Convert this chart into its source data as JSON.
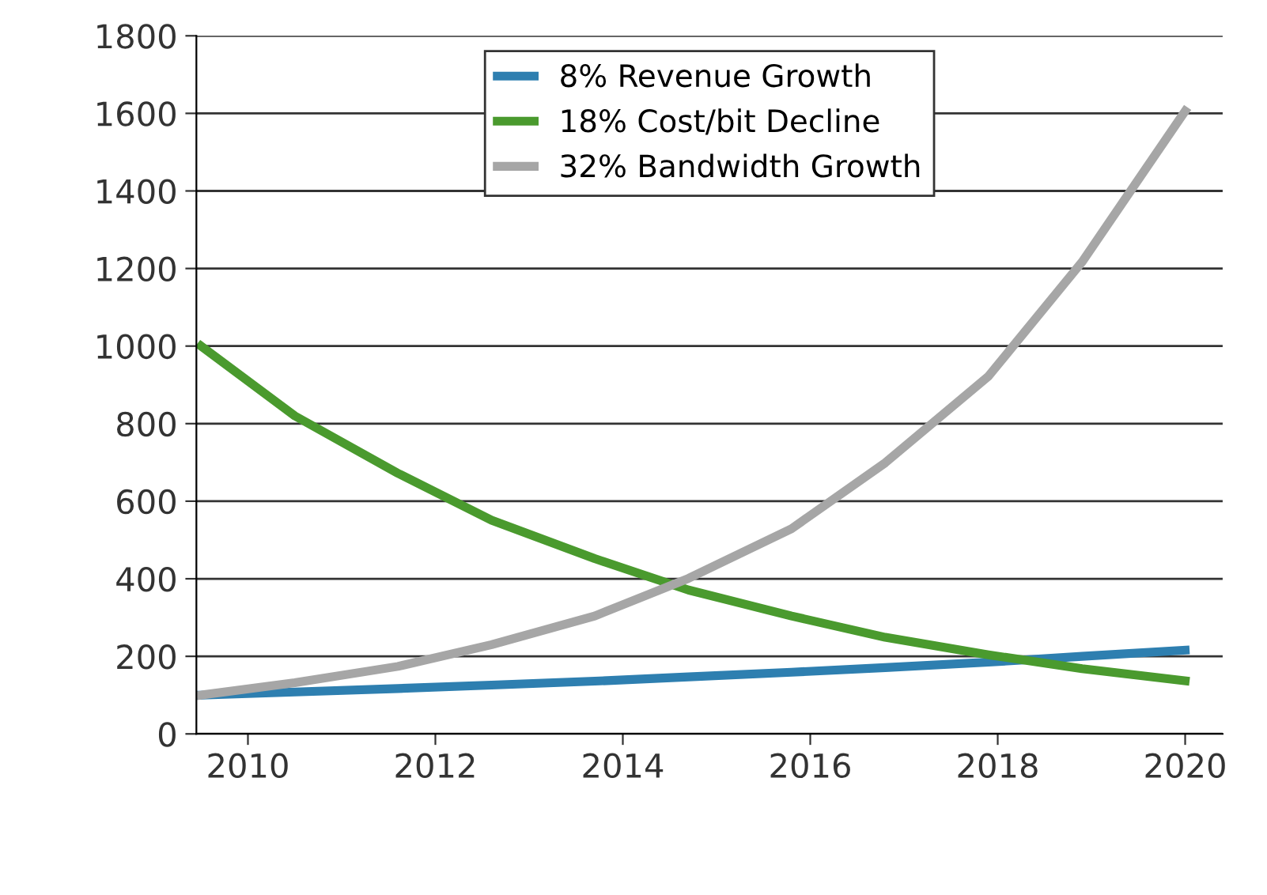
{
  "chart_data": {
    "type": "line",
    "x": [
      2009.5,
      2010.5,
      2011.6,
      2012.6,
      2013.7,
      2014.7,
      2015.8,
      2016.8,
      2017.9,
      2018.9,
      2020.0
    ],
    "series": [
      {
        "name": "8% Revenue Growth",
        "color": "#2e7fb0",
        "values": [
          100,
          108,
          117,
          126,
          136,
          147,
          159,
          171,
          185,
          200,
          216
        ]
      },
      {
        "name": "18% Cost/bit Decline",
        "color": "#4a9a2e",
        "values": [
          1000,
          820,
          672,
          551,
          452,
          371,
          304,
          249,
          204,
          168,
          137
        ]
      },
      {
        "name": "32% Bandwidth Growth",
        "color": "#a6a6a6",
        "values": [
          100,
          132,
          174,
          230,
          304,
          401,
          529,
          699,
          922,
          1217,
          1606
        ]
      }
    ],
    "xlim": [
      2009.45,
      2020.4
    ],
    "xticks": [
      2010,
      2012,
      2014,
      2016,
      2018,
      2020
    ],
    "ylim": [
      0,
      1800
    ],
    "yticks": [
      0,
      200,
      400,
      600,
      800,
      1000,
      1200,
      1400,
      1600,
      1800
    ],
    "grid": "y",
    "legend": "top",
    "marker": "none",
    "line_style": "solid"
  }
}
